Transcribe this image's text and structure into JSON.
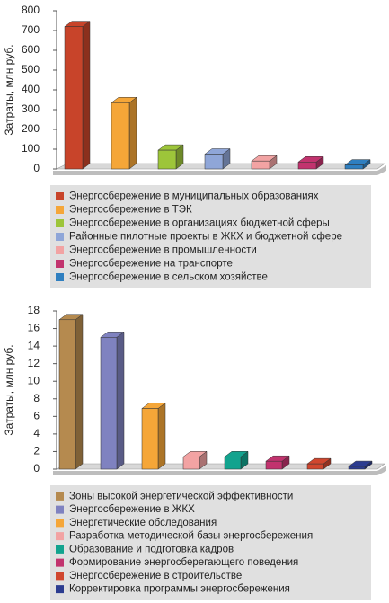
{
  "chart_data": [
    {
      "type": "bar",
      "ylabel": "Затраты, млн руб.",
      "ylim": [
        0,
        800
      ],
      "yticks": [
        0,
        100,
        200,
        300,
        400,
        500,
        600,
        700,
        800
      ],
      "grid": false,
      "series": [
        {
          "name": "Энергосбережение в муниципальных образованиях",
          "color": "#c8442a",
          "values": [
            720
          ]
        },
        {
          "name": "Энергосбережение в ТЭК",
          "color": "#f5a638",
          "values": [
            335
          ]
        },
        {
          "name": "Энергосбережение в организациях бюджетной сферы",
          "color": "#9dc53a",
          "values": [
            95
          ]
        },
        {
          "name": "Районные пилотные проекты в ЖКХ и бюджетной сфере",
          "color": "#8fa6d8",
          "values": [
            75
          ]
        },
        {
          "name": "Энергосбережение в промышленности",
          "color": "#f2a3a3",
          "values": [
            40
          ]
        },
        {
          "name": "Энергосбережение на транспорте",
          "color": "#c2336e",
          "values": [
            35
          ]
        },
        {
          "name": "Энергосбережение в сельском хозяйстве",
          "color": "#2f7fc0",
          "values": [
            20
          ]
        }
      ]
    },
    {
      "type": "bar",
      "ylabel": "Затраты, млн руб.",
      "ylim": [
        0,
        18
      ],
      "yticks": [
        0,
        2,
        4,
        6,
        8,
        10,
        12,
        14,
        16,
        18
      ],
      "grid": false,
      "series": [
        {
          "name": "Зоны высокой энергетической эффективности",
          "color": "#b58a4f",
          "values": [
            17
          ]
        },
        {
          "name": "Энергосбережение в ЖКХ",
          "color": "#7f82c0",
          "values": [
            15
          ]
        },
        {
          "name": "Энергетические обследования",
          "color": "#f5a638",
          "values": [
            6.9
          ]
        },
        {
          "name": "Разработка методической базы энергосбережения",
          "color": "#f2a3a3",
          "values": [
            1.4
          ]
        },
        {
          "name": "Образование и подготовка кадров",
          "color": "#12a38e",
          "values": [
            1.4
          ]
        },
        {
          "name": "Формирование энергосберегающего поведения",
          "color": "#c2336e",
          "values": [
            0.9
          ]
        },
        {
          "name": "Энергосбережение в строительстве",
          "color": "#d0462e",
          "values": [
            0.6
          ]
        },
        {
          "name": "Корректировка программы энергосбережения",
          "color": "#2c3c90",
          "values": [
            0.3
          ]
        }
      ]
    }
  ]
}
